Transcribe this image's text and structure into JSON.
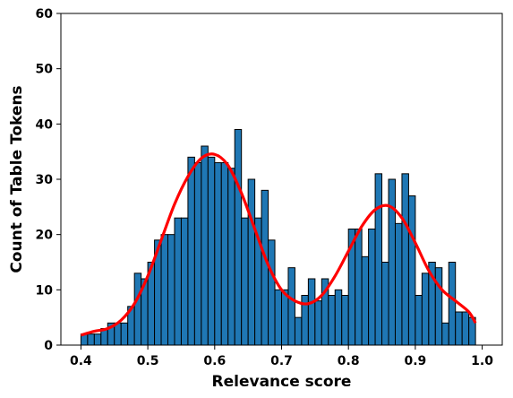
{
  "chart_data": {
    "type": "bar",
    "title": "",
    "xlabel": "Relevance score",
    "ylabel": "Count of Table Tokens",
    "xlim": [
      0.37,
      1.03
    ],
    "ylim": [
      0,
      60
    ],
    "xticks": [
      "0.4",
      "0.5",
      "0.6",
      "0.7",
      "0.8",
      "0.9",
      "1.0"
    ],
    "yticks": [
      "0",
      "10",
      "20",
      "30",
      "40",
      "50",
      "60"
    ],
    "grid": false,
    "legend": "none",
    "bar_color": "#1f77b4",
    "bar_edge_color": "#000000",
    "curve_color": "#ff0000",
    "bins": {
      "start": 0.4,
      "width": 0.01,
      "counts": [
        2,
        2,
        2,
        3,
        4,
        4,
        4,
        7,
        13,
        12,
        15,
        19,
        20,
        20,
        23,
        23,
        34,
        33,
        36,
        34,
        33,
        33,
        32,
        39,
        23,
        30,
        23,
        28,
        19,
        10,
        10,
        14,
        5,
        9,
        12,
        8,
        12,
        9,
        10,
        9,
        21,
        21,
        16,
        21,
        31,
        15,
        30,
        22,
        31,
        27,
        9,
        13,
        15,
        14,
        4,
        15,
        6,
        6,
        5
      ]
    },
    "kde_curve": {
      "x": [
        0.4,
        0.42,
        0.44,
        0.46,
        0.48,
        0.5,
        0.52,
        0.54,
        0.56,
        0.58,
        0.6,
        0.62,
        0.64,
        0.66,
        0.68,
        0.7,
        0.72,
        0.74,
        0.76,
        0.78,
        0.8,
        0.82,
        0.84,
        0.86,
        0.88,
        0.9,
        0.92,
        0.94,
        0.96,
        0.98,
        0.99
      ],
      "y": [
        1.8,
        2.5,
        3.0,
        4.5,
        7.5,
        12.5,
        19.0,
        25.5,
        30.5,
        33.8,
        34.5,
        32.5,
        27.5,
        21.0,
        14.5,
        10.0,
        8.0,
        7.5,
        9.0,
        12.5,
        17.0,
        21.5,
        24.5,
        25.2,
        23.0,
        18.5,
        13.5,
        10.0,
        8.0,
        6.0,
        4.0
      ]
    }
  }
}
